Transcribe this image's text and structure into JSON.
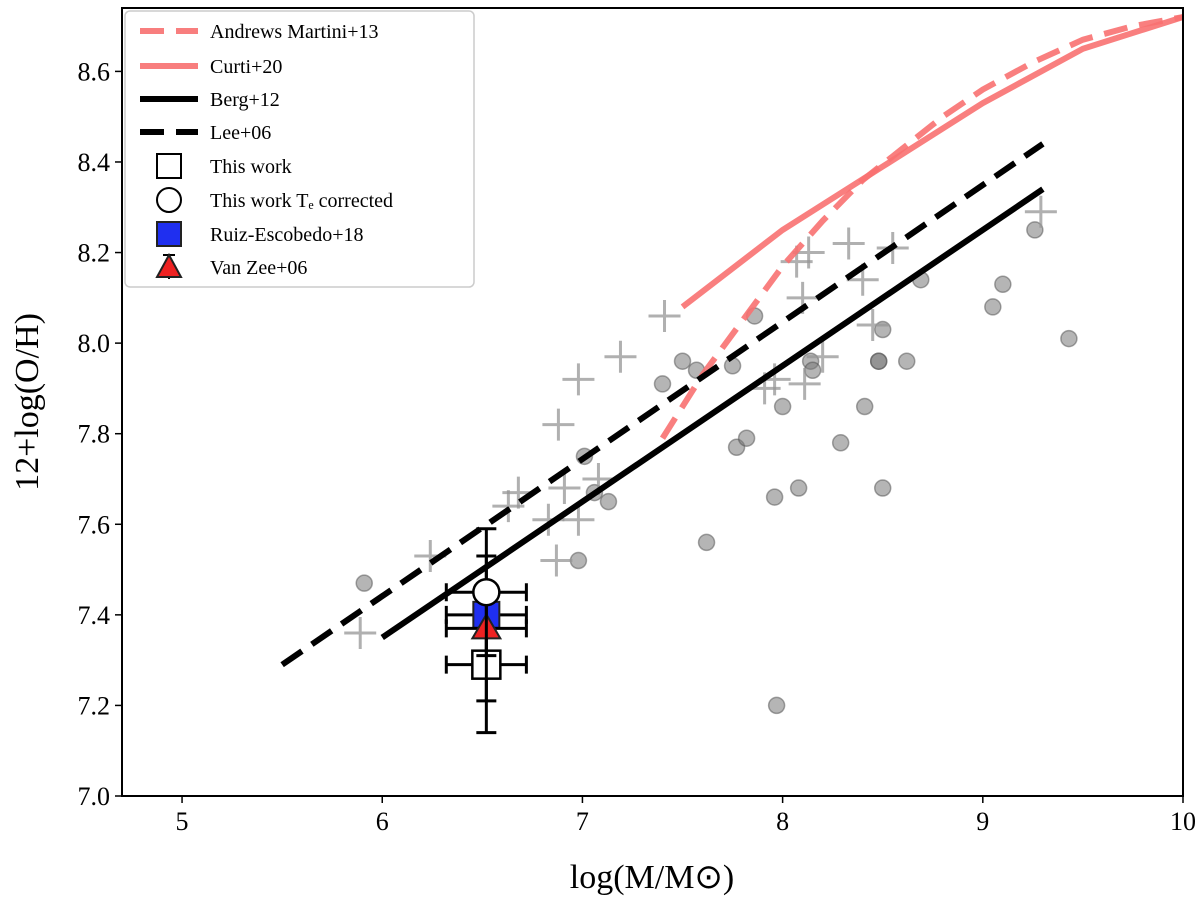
{
  "chart_data": {
    "type": "scatter",
    "xlabel": "log(M/M⊙)",
    "ylabel": "12+log(O/H)",
    "xlim": [
      4.7,
      10.0
    ],
    "ylim": [
      7.0,
      8.74
    ],
    "xticks": [
      "5",
      "6",
      "7",
      "8",
      "9",
      "10"
    ],
    "yticks": [
      "7.0",
      "7.2",
      "7.4",
      "7.6",
      "7.8",
      "8.0",
      "8.2",
      "8.4",
      "8.6"
    ],
    "grid": false,
    "legend_position": "top-left",
    "colors": {
      "red": "#f87171",
      "black": "#000000",
      "gray": "#9e9e9e",
      "blue": "#1f2ff0",
      "triangle": "#ee2222"
    },
    "lines": [
      {
        "name": "Andrews Martini+13",
        "style": "dashed",
        "color": "#f87171",
        "x": [
          7.4,
          7.6,
          7.8,
          8.0,
          8.2,
          8.4,
          8.6,
          8.8,
          9.0,
          9.25,
          9.5,
          9.75,
          10.0
        ],
        "y": [
          7.79,
          7.93,
          8.05,
          8.17,
          8.27,
          8.36,
          8.43,
          8.5,
          8.56,
          8.62,
          8.67,
          8.7,
          8.72
        ]
      },
      {
        "name": "Curti+20",
        "style": "solid",
        "color": "#f87171",
        "x": [
          7.5,
          8.0,
          8.5,
          9.0,
          9.5,
          10.0
        ],
        "y": [
          8.08,
          8.25,
          8.39,
          8.53,
          8.65,
          8.72
        ]
      },
      {
        "name": "Berg+12",
        "style": "solid",
        "color": "#000000",
        "x": [
          6.0,
          9.3
        ],
        "y": [
          7.35,
          8.34
        ]
      },
      {
        "name": "Lee+06",
        "style": "dashed",
        "color": "#000000",
        "x": [
          5.5,
          9.3
        ],
        "y": [
          7.29,
          8.44
        ]
      }
    ],
    "scatter_circles": [
      [
        5.91,
        7.47
      ],
      [
        6.98,
        7.52
      ],
      [
        7.01,
        7.75
      ],
      [
        7.06,
        7.67
      ],
      [
        7.13,
        7.65
      ],
      [
        7.4,
        7.91
      ],
      [
        7.5,
        7.96
      ],
      [
        7.57,
        7.94
      ],
      [
        7.62,
        7.56
      ],
      [
        7.75,
        7.95
      ],
      [
        7.77,
        7.77
      ],
      [
        7.82,
        7.79
      ],
      [
        7.86,
        8.06
      ],
      [
        7.96,
        7.66
      ],
      [
        7.97,
        7.2
      ],
      [
        8.0,
        7.86
      ],
      [
        8.08,
        7.68
      ],
      [
        8.14,
        7.96
      ],
      [
        8.15,
        7.94
      ],
      [
        8.29,
        7.78
      ],
      [
        8.41,
        7.86
      ],
      [
        8.48,
        7.96
      ],
      [
        8.48,
        7.96
      ],
      [
        8.5,
        8.03
      ],
      [
        8.5,
        7.68
      ],
      [
        8.62,
        7.96
      ],
      [
        8.69,
        8.14
      ],
      [
        9.05,
        8.08
      ],
      [
        9.1,
        8.13
      ],
      [
        9.26,
        8.25
      ],
      [
        9.43,
        8.01
      ]
    ],
    "scatter_crosses": [
      [
        5.89,
        7.36
      ],
      [
        6.24,
        7.53
      ],
      [
        6.63,
        7.64
      ],
      [
        6.68,
        7.67
      ],
      [
        6.83,
        7.61
      ],
      [
        6.87,
        7.52
      ],
      [
        6.88,
        7.82
      ],
      [
        6.91,
        7.68
      ],
      [
        6.98,
        7.61
      ],
      [
        6.98,
        7.92
      ],
      [
        7.08,
        7.7
      ],
      [
        7.19,
        7.97
      ],
      [
        7.41,
        8.06
      ],
      [
        7.91,
        7.9
      ],
      [
        7.96,
        7.92
      ],
      [
        8.07,
        8.18
      ],
      [
        8.1,
        8.1
      ],
      [
        8.11,
        7.91
      ],
      [
        8.13,
        8.2
      ],
      [
        8.2,
        7.97
      ],
      [
        8.33,
        8.22
      ],
      [
        8.4,
        8.14
      ],
      [
        8.45,
        8.04
      ],
      [
        8.55,
        8.21
      ],
      [
        9.29,
        8.29
      ]
    ],
    "points": [
      {
        "name": "This work",
        "marker": "square",
        "x": 6.52,
        "y": 7.29,
        "xerr": 0.2,
        "yerr": 0.15
      },
      {
        "name": "This work Tₑ corrected",
        "marker": "circle",
        "x": 6.52,
        "y": 7.45,
        "xerr": 0.2,
        "yerr": 0.14
      },
      {
        "name": "Ruiz-Escobedo+18",
        "marker": "filled-square",
        "x": 6.52,
        "y": 7.4,
        "xerr": 0.2,
        "yerr": 0.02
      },
      {
        "name": "Van Zee+06",
        "marker": "triangle",
        "x": 6.52,
        "y": 7.37,
        "xerr": 0.2,
        "yerr": 0.16
      }
    ],
    "legend": [
      "Andrews Martini+13",
      "Curti+20",
      "Berg+12",
      "Lee+06",
      "This work",
      "This work Tₑ corrected",
      "Ruiz-Escobedo+18",
      "Van Zee+06"
    ]
  }
}
